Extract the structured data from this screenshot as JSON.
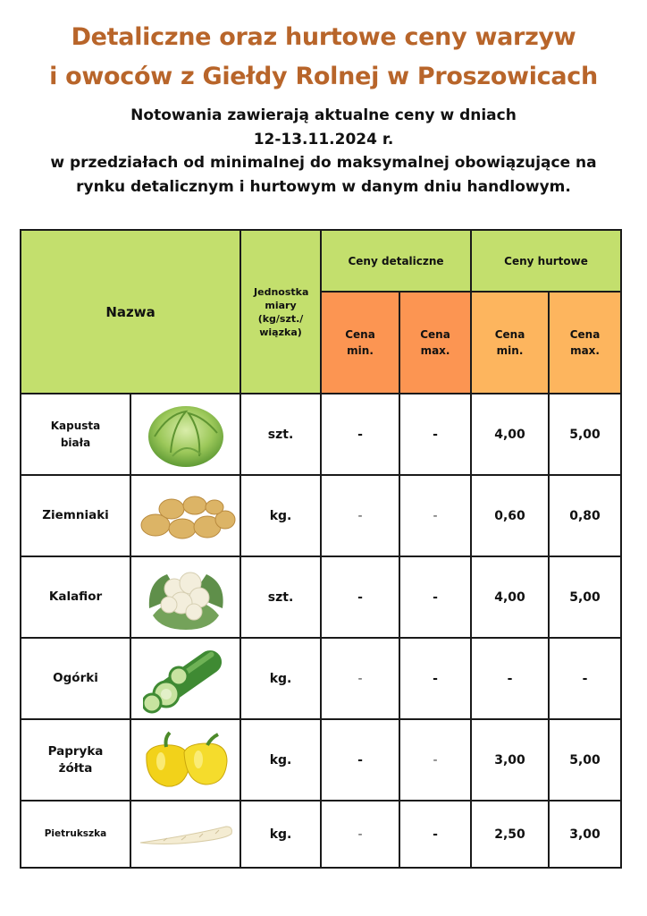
{
  "header": {
    "title_line1": "Detaliczne oraz hurtowe ceny warzyw",
    "title_line2": "i owoców z Giełdy Rolnej w Proszowicach",
    "subtitle_line1": "Notowania zawierają aktualne ceny w dniach",
    "subtitle_line2": "12-13.11.2024 r.",
    "subtitle_line3": "w przedziałach od minimalnej do maksymalnej obowiązujące na",
    "subtitle_line4": "rynku detalicznym i hurtowym w danym dniu handlowym."
  },
  "table": {
    "col_name": "Nazwa",
    "col_unit": "Jednostka miary (kg/szt./ wiązka)",
    "group_retail": "Ceny detaliczne",
    "group_wholesale": "Ceny hurtowe",
    "sub_min": "Cena min.",
    "sub_max": "Cena max.",
    "rows": [
      {
        "name": "Kapusta biała",
        "icon": "cabbage-icon",
        "unit": "szt.",
        "retail_min": "-",
        "retail_max": "-",
        "wholesale_min": "4,00",
        "wholesale_max": "5,00"
      },
      {
        "name": "Ziemniaki",
        "icon": "potatoes-icon",
        "unit": "kg.",
        "retail_min": "-",
        "retail_max": "-",
        "wholesale_min": "0,60",
        "wholesale_max": "0,80"
      },
      {
        "name": "Kalafior",
        "icon": "cauliflower-icon",
        "unit": "szt.",
        "retail_min": "-",
        "retail_max": "-",
        "wholesale_min": "4,00",
        "wholesale_max": "5,00"
      },
      {
        "name": "Ogórki",
        "icon": "cucumber-icon",
        "unit": "kg.",
        "retail_min": "-",
        "retail_max": "-",
        "wholesale_min": "-",
        "wholesale_max": "-"
      },
      {
        "name": "Papryka żółta",
        "icon": "yellow-pepper-icon",
        "unit": "kg.",
        "retail_min": "-",
        "retail_max": "-",
        "wholesale_min": "3,00",
        "wholesale_max": "5,00"
      },
      {
        "name": "Pietrukszka",
        "icon": "parsley-root-icon",
        "unit": "kg.",
        "retail_min": "-",
        "retail_max": "-",
        "wholesale_min": "2,50",
        "wholesale_max": "3,00"
      }
    ]
  },
  "colors": {
    "title": "#b8652a",
    "header_green": "#c3df6d",
    "header_orange": "#fc9552",
    "header_amber": "#fdb55e"
  }
}
